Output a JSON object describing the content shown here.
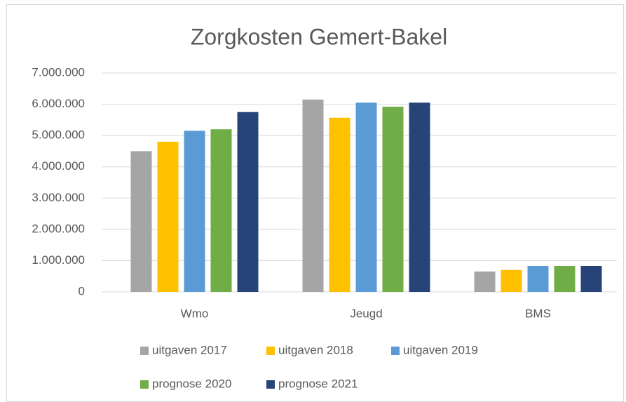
{
  "chart_data": {
    "type": "bar",
    "title": "Zorgkosten Gemert-Bakel",
    "categories": [
      "Wmo",
      "Jeugd",
      "BMS"
    ],
    "series": [
      {
        "name": "uitgaven 2017",
        "color": "#a5a5a5",
        "values": [
          4500000,
          6150000,
          650000
        ]
      },
      {
        "name": "uitgaven 2018",
        "color": "#ffc000",
        "values": [
          4800000,
          5570000,
          700000
        ]
      },
      {
        "name": "uitgaven 2019",
        "color": "#5b9bd5",
        "values": [
          5150000,
          6050000,
          830000
        ]
      },
      {
        "name": "prognose 2020",
        "color": "#70ad47",
        "values": [
          5200000,
          5920000,
          830000
        ]
      },
      {
        "name": "prognose 2021",
        "color": "#264478",
        "values": [
          5750000,
          6050000,
          830000
        ]
      }
    ],
    "ylim": [
      0,
      7000000
    ],
    "yticks": [
      0,
      {
        "value": 1000000,
        "label": "1.000.000"
      },
      {
        "value": 2000000,
        "label": "2.000.000"
      },
      {
        "value": 3000000,
        "label": "3.000.000"
      },
      {
        "value": 4000000,
        "label": "4.000.000"
      },
      {
        "value": 5000000,
        "label": "5.000.000"
      },
      {
        "value": 6000000,
        "label": "6.000.000"
      },
      {
        "value": 7000000,
        "label": "7.000.000"
      }
    ],
    "grid": true,
    "legend": "bottom"
  }
}
